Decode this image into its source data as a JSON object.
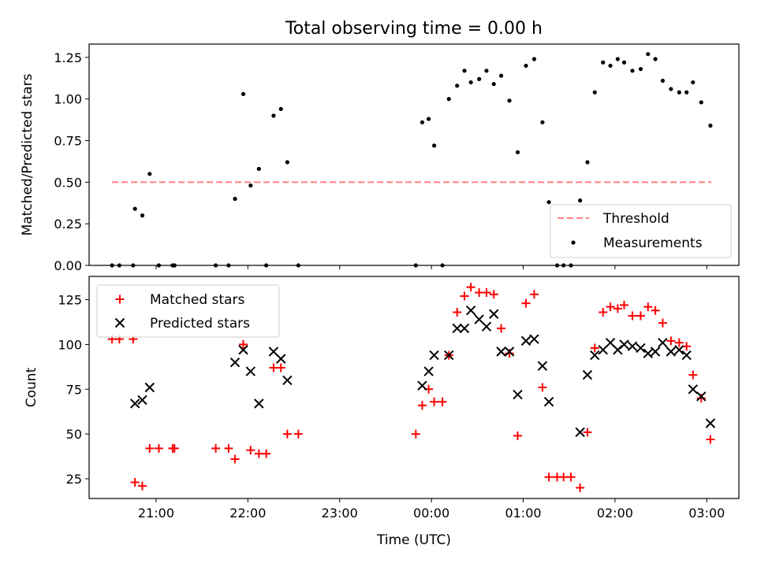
{
  "figure": {
    "title": "Total observing time = 0.00 h",
    "xlabel": "Time (UTC)"
  },
  "chart_data": [
    {
      "type": "scatter",
      "panel": "top",
      "ylabel": "Matched/Predicted stars",
      "x_unit": "hours after 21:00 UTC",
      "xlim": [
        -0.73,
        6.35
      ],
      "ylim": [
        0,
        1.33
      ],
      "yticks": [
        0,
        0.25,
        0.5,
        0.75,
        1.0,
        1.25
      ],
      "ytick_labels": [
        "0.00",
        "0.25",
        "0.50",
        "0.75",
        "1.00",
        "1.25"
      ],
      "xticks": [
        0,
        1,
        2,
        3,
        4,
        5,
        6
      ],
      "legend_position": "lower-right",
      "series": [
        {
          "name": "Threshold",
          "style": "dashed-line",
          "color": "#ff8080",
          "x": [
            -0.48,
            6.05
          ],
          "y": [
            0.5,
            0.5
          ]
        },
        {
          "name": "Measurements",
          "style": "dots",
          "color": "#000000",
          "points": [
            [
              -0.48,
              0.0
            ],
            [
              -0.4,
              0.0
            ],
            [
              -0.25,
              0.0
            ],
            [
              -0.23,
              0.34
            ],
            [
              -0.15,
              0.3
            ],
            [
              -0.07,
              0.55
            ],
            [
              0.03,
              0.0
            ],
            [
              0.18,
              0.0
            ],
            [
              0.2,
              0.0
            ],
            [
              0.65,
              0.0
            ],
            [
              0.79,
              0.0
            ],
            [
              0.86,
              0.4
            ],
            [
              0.95,
              1.03
            ],
            [
              1.03,
              0.48
            ],
            [
              1.12,
              0.58
            ],
            [
              1.2,
              0.0
            ],
            [
              1.28,
              0.9
            ],
            [
              1.36,
              0.94
            ],
            [
              1.43,
              0.62
            ],
            [
              1.55,
              0.0
            ],
            [
              2.83,
              0.0
            ],
            [
              2.9,
              0.86
            ],
            [
              2.97,
              0.88
            ],
            [
              3.03,
              0.72
            ],
            [
              3.12,
              0.0
            ],
            [
              3.19,
              1.0
            ],
            [
              3.28,
              1.08
            ],
            [
              3.36,
              1.17
            ],
            [
              3.43,
              1.1
            ],
            [
              3.52,
              1.12
            ],
            [
              3.6,
              1.17
            ],
            [
              3.68,
              1.09
            ],
            [
              3.76,
              1.14
            ],
            [
              3.85,
              0.99
            ],
            [
              3.94,
              0.68
            ],
            [
              4.03,
              1.2
            ],
            [
              4.12,
              1.24
            ],
            [
              4.21,
              0.86
            ],
            [
              4.28,
              0.38
            ],
            [
              4.37,
              0.0
            ],
            [
              4.44,
              0.0
            ],
            [
              4.52,
              0.0
            ],
            [
              4.62,
              0.39
            ],
            [
              4.7,
              0.62
            ],
            [
              4.78,
              1.04
            ],
            [
              4.87,
              1.22
            ],
            [
              4.95,
              1.2
            ],
            [
              5.03,
              1.24
            ],
            [
              5.1,
              1.22
            ],
            [
              5.19,
              1.17
            ],
            [
              5.28,
              1.18
            ],
            [
              5.36,
              1.27
            ],
            [
              5.44,
              1.24
            ],
            [
              5.52,
              1.11
            ],
            [
              5.61,
              1.06
            ],
            [
              5.7,
              1.04
            ],
            [
              5.78,
              1.04
            ],
            [
              5.85,
              1.1
            ],
            [
              5.94,
              0.98
            ],
            [
              6.04,
              0.84
            ]
          ]
        }
      ]
    },
    {
      "type": "scatter",
      "panel": "bottom",
      "ylabel": "Count",
      "x_unit": "hours after 21:00 UTC",
      "xlim": [
        -0.73,
        6.35
      ],
      "ylim": [
        14,
        138
      ],
      "yticks": [
        25,
        50,
        75,
        100,
        125
      ],
      "ytick_labels": [
        "25",
        "50",
        "75",
        "100",
        "125"
      ],
      "xticks": [
        0,
        1,
        2,
        3,
        4,
        5,
        6
      ],
      "xtick_labels": [
        "21:00",
        "22:00",
        "23:00",
        "00:00",
        "01:00",
        "02:00",
        "03:00"
      ],
      "legend_position": "upper-left",
      "series": [
        {
          "name": "Matched stars",
          "marker": "plus",
          "color": "#ff0000",
          "points": [
            [
              -0.48,
              103
            ],
            [
              -0.4,
              103
            ],
            [
              -0.25,
              103
            ],
            [
              -0.23,
              23
            ],
            [
              -0.15,
              21
            ],
            [
              -0.07,
              42
            ],
            [
              0.03,
              42
            ],
            [
              0.18,
              42
            ],
            [
              0.2,
              42
            ],
            [
              0.65,
              42
            ],
            [
              0.79,
              42
            ],
            [
              0.86,
              36
            ],
            [
              0.95,
              100
            ],
            [
              1.03,
              41
            ],
            [
              1.12,
              39
            ],
            [
              1.2,
              39
            ],
            [
              1.28,
              87
            ],
            [
              1.36,
              87
            ],
            [
              1.43,
              50
            ],
            [
              1.55,
              50
            ],
            [
              2.83,
              50
            ],
            [
              2.9,
              66
            ],
            [
              2.97,
              75
            ],
            [
              3.03,
              68
            ],
            [
              3.12,
              68
            ],
            [
              3.19,
              94
            ],
            [
              3.28,
              118
            ],
            [
              3.36,
              127
            ],
            [
              3.43,
              132
            ],
            [
              3.52,
              129
            ],
            [
              3.6,
              129
            ],
            [
              3.68,
              128
            ],
            [
              3.76,
              109
            ],
            [
              3.85,
              95
            ],
            [
              3.94,
              49
            ],
            [
              4.03,
              123
            ],
            [
              4.12,
              128
            ],
            [
              4.21,
              76
            ],
            [
              4.28,
              26
            ],
            [
              4.37,
              26
            ],
            [
              4.44,
              26
            ],
            [
              4.52,
              26
            ],
            [
              4.62,
              20
            ],
            [
              4.7,
              51
            ],
            [
              4.78,
              98
            ],
            [
              4.87,
              118
            ],
            [
              4.95,
              121
            ],
            [
              5.03,
              120
            ],
            [
              5.1,
              122
            ],
            [
              5.19,
              116
            ],
            [
              5.28,
              116
            ],
            [
              5.36,
              121
            ],
            [
              5.44,
              119
            ],
            [
              5.52,
              112
            ],
            [
              5.61,
              102
            ],
            [
              5.7,
              101
            ],
            [
              5.78,
              99
            ],
            [
              5.85,
              83
            ],
            [
              5.94,
              70
            ],
            [
              6.04,
              47
            ]
          ]
        },
        {
          "name": "Predicted stars",
          "marker": "x",
          "color": "#000000",
          "points": [
            [
              -0.23,
              67
            ],
            [
              -0.15,
              69
            ],
            [
              -0.07,
              76
            ],
            [
              0.86,
              90
            ],
            [
              0.95,
              97
            ],
            [
              1.03,
              85
            ],
            [
              1.12,
              67
            ],
            [
              1.28,
              96
            ],
            [
              1.36,
              92
            ],
            [
              1.43,
              80
            ],
            [
              2.9,
              77
            ],
            [
              2.97,
              85
            ],
            [
              3.03,
              94
            ],
            [
              3.19,
              94
            ],
            [
              3.28,
              109
            ],
            [
              3.36,
              109
            ],
            [
              3.43,
              119
            ],
            [
              3.52,
              114
            ],
            [
              3.6,
              110
            ],
            [
              3.68,
              117
            ],
            [
              3.76,
              96
            ],
            [
              3.85,
              96
            ],
            [
              3.94,
              72
            ],
            [
              4.03,
              102
            ],
            [
              4.12,
              103
            ],
            [
              4.21,
              88
            ],
            [
              4.28,
              68
            ],
            [
              4.62,
              51
            ],
            [
              4.7,
              83
            ],
            [
              4.78,
              94
            ],
            [
              4.87,
              97
            ],
            [
              4.95,
              101
            ],
            [
              5.03,
              97
            ],
            [
              5.1,
              100
            ],
            [
              5.19,
              99
            ],
            [
              5.28,
              98
            ],
            [
              5.36,
              95
            ],
            [
              5.44,
              96
            ],
            [
              5.52,
              101
            ],
            [
              5.61,
              96
            ],
            [
              5.7,
              97
            ],
            [
              5.78,
              94
            ],
            [
              5.85,
              75
            ],
            [
              5.94,
              71
            ],
            [
              6.04,
              56
            ]
          ]
        }
      ]
    }
  ]
}
